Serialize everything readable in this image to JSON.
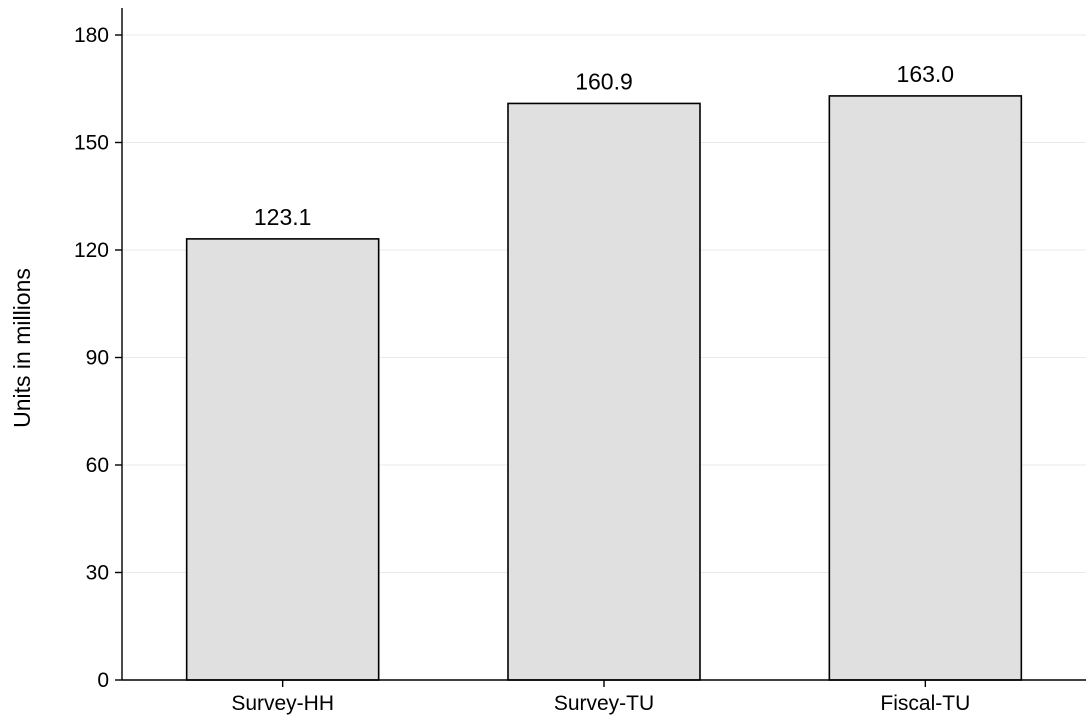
{
  "chart_data": {
    "type": "bar",
    "title": "",
    "xlabel": "",
    "ylabel": "Units in millions",
    "categories": [
      "Survey-HH",
      "Survey-TU",
      "Fiscal-TU"
    ],
    "values": [
      123.1,
      160.9,
      163.0
    ],
    "data_labels": [
      "123.1",
      "160.9",
      "163.0"
    ],
    "ylim": [
      0,
      180
    ],
    "yticks": [
      0,
      30,
      60,
      90,
      120,
      150,
      180
    ],
    "ytick_labels": [
      "0",
      "30",
      "60",
      "90",
      "120",
      "150",
      "180"
    ],
    "grid": "horizontal",
    "legend": "none",
    "colors": {
      "bar_fill": "#e0e0e0",
      "bar_stroke": "#000000",
      "grid": "#eaeaea",
      "axis": "#000000",
      "background": "#ffffff"
    }
  }
}
